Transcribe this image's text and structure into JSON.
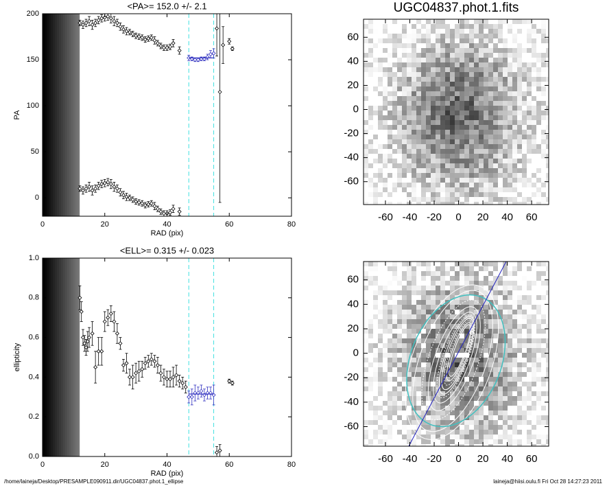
{
  "chart_data": [
    {
      "type": "errorbar",
      "title": "<PA>= 152.0 +/-   2.1",
      "x_label": "RAD (pix)",
      "y_label": "PA",
      "xlim": [
        0,
        80
      ],
      "xticks": [
        0,
        20,
        40,
        60,
        80
      ],
      "ylim": [
        -20,
        200
      ],
      "yticks": [
        0,
        50,
        100,
        150,
        200
      ],
      "series": [
        {
          "x": [
            12,
            13,
            14,
            15,
            16,
            17,
            18,
            19,
            20,
            21,
            22,
            23,
            24,
            25,
            26,
            27,
            28,
            29,
            30,
            31,
            32,
            33,
            34,
            35,
            36,
            37,
            38,
            39,
            40,
            41,
            42,
            44,
            47,
            48,
            49,
            50,
            51,
            52,
            53,
            54,
            55,
            56,
            57,
            58,
            60,
            61
          ],
          "values": [
            190,
            188,
            190,
            192,
            188,
            190,
            193,
            195,
            196,
            197,
            195,
            192,
            190,
            186,
            183,
            181,
            180,
            178,
            176,
            175,
            174,
            172,
            173,
            174,
            171,
            168,
            165,
            163,
            163,
            164,
            168,
            160,
            152,
            151,
            150,
            150,
            151,
            151,
            153,
            156,
            157,
            184,
            115,
            166,
            170,
            162
          ],
          "errors": [
            3,
            4,
            4,
            5,
            5,
            4,
            4,
            4,
            4,
            4,
            5,
            5,
            4,
            4,
            4,
            4,
            3,
            3,
            3,
            3,
            3,
            3,
            3,
            3,
            4,
            3,
            3,
            3,
            3,
            3,
            4,
            4,
            3,
            2,
            2,
            2,
            2,
            2,
            3,
            4,
            5,
            30,
            120,
            20,
            3,
            2
          ]
        },
        {
          "x": [
            12,
            13,
            14,
            15,
            16,
            17,
            18,
            19,
            20,
            21,
            22,
            23,
            24,
            25,
            26,
            27,
            28,
            29,
            30,
            31,
            32,
            33,
            34,
            35,
            36,
            37,
            38,
            39,
            40,
            41,
            42,
            44
          ],
          "values": [
            10,
            8,
            10,
            12,
            8,
            10,
            13,
            15,
            16,
            17,
            15,
            12,
            10,
            6,
            3,
            1,
            0,
            -2,
            -4,
            -5,
            -6,
            -8,
            -7,
            -6,
            -9,
            -12,
            -15,
            -17,
            -17,
            -16,
            -12,
            -15
          ],
          "errors": [
            3,
            4,
            4,
            5,
            5,
            4,
            4,
            4,
            4,
            4,
            5,
            5,
            4,
            4,
            4,
            4,
            3,
            3,
            3,
            3,
            3,
            3,
            3,
            3,
            4,
            3,
            3,
            3,
            3,
            3,
            4,
            4
          ]
        }
      ],
      "fit_range": [
        47,
        55
      ],
      "fit_value": 152.0,
      "marker_color": "#000000",
      "fit_color": "#3030c0",
      "range_color": "#40e0e0"
    },
    {
      "type": "errorbar",
      "title": "<ELL>= 0.315 +/-  0.023",
      "x_label": "RAD (pix)",
      "y_label": "ellipticity",
      "xlim": [
        0,
        80
      ],
      "xticks": [
        0,
        20,
        40,
        60,
        80
      ],
      "ylim": [
        0,
        1
      ],
      "yticks": [
        {
          "value": 0,
          "label": "0.0"
        },
        0.2,
        0.4,
        0.6,
        0.8,
        {
          "value": 1,
          "label": "1.0"
        }
      ],
      "series": [
        {
          "x": [
            12,
            12.5,
            13,
            13.5,
            14,
            14.5,
            15,
            16,
            17,
            18,
            19,
            20,
            21,
            22,
            23,
            24,
            25,
            26,
            27,
            28,
            29,
            30,
            31,
            32,
            33,
            34,
            35,
            36,
            37,
            38,
            39,
            40,
            41,
            42,
            43,
            44,
            45,
            46,
            47,
            48,
            49,
            50,
            51,
            52,
            53,
            54,
            55,
            56,
            57,
            60,
            61
          ],
          "values": [
            0.8,
            0.73,
            0.6,
            0.57,
            0.55,
            0.58,
            0.6,
            0.62,
            0.45,
            0.53,
            0.53,
            0.68,
            0.7,
            0.72,
            0.68,
            0.62,
            0.57,
            0.46,
            0.47,
            0.4,
            0.4,
            0.42,
            0.43,
            0.44,
            0.47,
            0.48,
            0.49,
            0.48,
            0.46,
            0.42,
            0.4,
            0.39,
            0.39,
            0.4,
            0.41,
            0.38,
            0.37,
            0.35,
            0.3,
            0.3,
            0.32,
            0.32,
            0.33,
            0.31,
            0.32,
            0.32,
            0.31,
            0.02,
            0.03,
            0.38,
            0.37
          ],
          "errors": [
            0.06,
            0.05,
            0.04,
            0.04,
            0.04,
            0.05,
            0.05,
            0.06,
            0.08,
            0.07,
            0.07,
            0.05,
            0.04,
            0.04,
            0.05,
            0.05,
            0.03,
            0.03,
            0.05,
            0.04,
            0.06,
            0.05,
            0.05,
            0.04,
            0.03,
            0.03,
            0.03,
            0.03,
            0.04,
            0.04,
            0.04,
            0.04,
            0.04,
            0.05,
            0.05,
            0.03,
            0.03,
            0.03,
            0.03,
            0.04,
            0.04,
            0.03,
            0.03,
            0.03,
            0.03,
            0.03,
            0.05,
            0.03,
            0.03,
            0.01,
            0.01
          ]
        }
      ],
      "fit_range": [
        47,
        55
      ],
      "fit_value": 0.315,
      "marker_color": "#000000",
      "fit_color": "#3030c0",
      "range_color": "#40e0e0"
    },
    {
      "type": "image",
      "title": "UGC04837.phot.1.fits",
      "xlim": [
        -78,
        74
      ],
      "xticks": [
        -60,
        -40,
        -20,
        0,
        20,
        40,
        60
      ],
      "ylim": [
        -79,
        75
      ],
      "yticks": [
        -60,
        -40,
        -20,
        0,
        20,
        40,
        60
      ],
      "contours": false
    },
    {
      "type": "image",
      "xlim": [
        -78,
        74
      ],
      "xticks": [
        -60,
        -40,
        -20,
        0,
        20,
        40,
        60
      ],
      "ylim": [
        -76,
        75
      ],
      "yticks": [
        -60,
        -40,
        -20,
        0,
        20,
        40,
        60
      ],
      "contours": true
    }
  ],
  "footer": {
    "left": "/home/laineja/Desktop/PRESAMPLE090911.dir/UGC04837.phot.1_ellipse",
    "right": "laineja@hiisi.oulu.fi  Fri Oct 28 14:27:23 2011"
  }
}
